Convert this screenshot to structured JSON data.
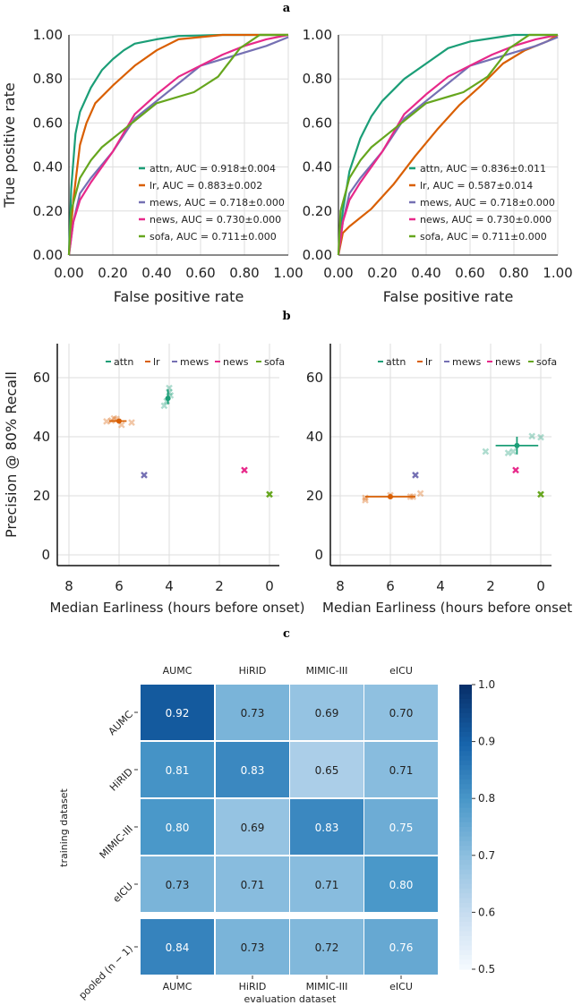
{
  "panel_labels": [
    "a",
    "b",
    "c"
  ],
  "colors": {
    "attn": "#1b9e77",
    "lr": "#d95f02",
    "mews": "#7570b3",
    "news": "#e7298a",
    "sofa": "#66a61e"
  },
  "chart_data": [
    {
      "type": "line",
      "panel": "a",
      "xlabel": "False positive rate",
      "ylabel": "True positive rate",
      "xlim": [
        0,
        1
      ],
      "ylim": [
        0,
        1
      ],
      "xticks": [
        "0.00",
        "0.20",
        "0.40",
        "0.60",
        "0.80",
        "1.00"
      ],
      "yticks": [
        "0.00",
        "0.20",
        "0.40",
        "0.60",
        "0.80",
        "1.00"
      ],
      "grid": true,
      "legend_position": "bottom-right",
      "series": [
        {
          "name": "attn, AUC = 0.918±0.004",
          "key": "attn",
          "points": [
            [
              0,
              0
            ],
            [
              0.01,
              0.3
            ],
            [
              0.03,
              0.55
            ],
            [
              0.05,
              0.65
            ],
            [
              0.1,
              0.76
            ],
            [
              0.15,
              0.84
            ],
            [
              0.2,
              0.89
            ],
            [
              0.25,
              0.93
            ],
            [
              0.3,
              0.96
            ],
            [
              0.4,
              0.98
            ],
            [
              0.5,
              0.995
            ],
            [
              0.7,
              1
            ],
            [
              1,
              1
            ]
          ]
        },
        {
          "name": "lr, AUC = 0.883±0.002",
          "key": "lr",
          "points": [
            [
              0,
              0
            ],
            [
              0.02,
              0.25
            ],
            [
              0.05,
              0.5
            ],
            [
              0.08,
              0.6
            ],
            [
              0.12,
              0.69
            ],
            [
              0.2,
              0.77
            ],
            [
              0.3,
              0.86
            ],
            [
              0.4,
              0.93
            ],
            [
              0.5,
              0.98
            ],
            [
              0.7,
              1
            ],
            [
              1,
              1
            ]
          ]
        },
        {
          "name": "mews, AUC = 0.718±0.000",
          "key": "mews",
          "points": [
            [
              0,
              0
            ],
            [
              0.02,
              0.15
            ],
            [
              0.05,
              0.28
            ],
            [
              0.1,
              0.35
            ],
            [
              0.2,
              0.47
            ],
            [
              0.3,
              0.62
            ],
            [
              0.4,
              0.7
            ],
            [
              0.5,
              0.78
            ],
            [
              0.6,
              0.86
            ],
            [
              0.7,
              0.89
            ],
            [
              0.8,
              0.92
            ],
            [
              0.9,
              0.95
            ],
            [
              1,
              0.99
            ]
          ]
        },
        {
          "name": "news, AUC = 0.730±0.000",
          "key": "news",
          "points": [
            [
              0,
              0
            ],
            [
              0.02,
              0.15
            ],
            [
              0.05,
              0.25
            ],
            [
              0.1,
              0.33
            ],
            [
              0.2,
              0.47
            ],
            [
              0.3,
              0.64
            ],
            [
              0.4,
              0.73
            ],
            [
              0.5,
              0.81
            ],
            [
              0.6,
              0.86
            ],
            [
              0.7,
              0.91
            ],
            [
              0.8,
              0.95
            ],
            [
              0.9,
              0.98
            ],
            [
              1,
              1
            ]
          ]
        },
        {
          "name": "sofa, AUC = 0.711±0.000",
          "key": "sofa",
          "points": [
            [
              0,
              0
            ],
            [
              0.01,
              0.2
            ],
            [
              0.05,
              0.35
            ],
            [
              0.1,
              0.43
            ],
            [
              0.15,
              0.49
            ],
            [
              0.25,
              0.57
            ],
            [
              0.4,
              0.69
            ],
            [
              0.57,
              0.74
            ],
            [
              0.68,
              0.81
            ],
            [
              0.78,
              0.94
            ],
            [
              0.87,
              1
            ],
            [
              1,
              1
            ]
          ]
        }
      ]
    },
    {
      "type": "line",
      "panel": "a",
      "xlabel": "False positive rate",
      "ylabel": "",
      "xlim": [
        0,
        1
      ],
      "ylim": [
        0,
        1
      ],
      "xticks": [
        "0.00",
        "0.20",
        "0.40",
        "0.60",
        "0.80",
        "1.00"
      ],
      "yticks": [
        "0.00",
        "0.20",
        "0.40",
        "0.60",
        "0.80",
        "1.00"
      ],
      "grid": true,
      "legend_position": "bottom-right",
      "series": [
        {
          "name": "attn, AUC = 0.836±0.011",
          "key": "attn",
          "points": [
            [
              0,
              0
            ],
            [
              0.02,
              0.2
            ],
            [
              0.05,
              0.38
            ],
            [
              0.1,
              0.53
            ],
            [
              0.15,
              0.63
            ],
            [
              0.2,
              0.7
            ],
            [
              0.3,
              0.8
            ],
            [
              0.4,
              0.87
            ],
            [
              0.5,
              0.94
            ],
            [
              0.6,
              0.97
            ],
            [
              0.8,
              1
            ],
            [
              1,
              1
            ]
          ]
        },
        {
          "name": "lr, AUC = 0.587±0.014",
          "key": "lr",
          "points": [
            [
              0,
              0
            ],
            [
              0.02,
              0.1
            ],
            [
              0.05,
              0.13
            ],
            [
              0.15,
              0.21
            ],
            [
              0.25,
              0.32
            ],
            [
              0.35,
              0.45
            ],
            [
              0.45,
              0.57
            ],
            [
              0.55,
              0.68
            ],
            [
              0.65,
              0.77
            ],
            [
              0.75,
              0.87
            ],
            [
              0.85,
              0.93
            ],
            [
              0.95,
              0.97
            ],
            [
              1,
              1
            ]
          ]
        },
        {
          "name": "mews, AUC = 0.718±0.000",
          "key": "mews",
          "points": [
            [
              0,
              0
            ],
            [
              0.02,
              0.15
            ],
            [
              0.05,
              0.28
            ],
            [
              0.1,
              0.35
            ],
            [
              0.2,
              0.47
            ],
            [
              0.3,
              0.62
            ],
            [
              0.4,
              0.7
            ],
            [
              0.5,
              0.78
            ],
            [
              0.6,
              0.86
            ],
            [
              0.7,
              0.89
            ],
            [
              0.8,
              0.92
            ],
            [
              0.9,
              0.95
            ],
            [
              1,
              0.99
            ]
          ]
        },
        {
          "name": "news, AUC = 0.730±0.000",
          "key": "news",
          "points": [
            [
              0,
              0
            ],
            [
              0.02,
              0.15
            ],
            [
              0.05,
              0.25
            ],
            [
              0.1,
              0.33
            ],
            [
              0.2,
              0.47
            ],
            [
              0.3,
              0.64
            ],
            [
              0.4,
              0.73
            ],
            [
              0.5,
              0.81
            ],
            [
              0.6,
              0.86
            ],
            [
              0.7,
              0.91
            ],
            [
              0.8,
              0.95
            ],
            [
              0.9,
              0.98
            ],
            [
              1,
              1
            ]
          ]
        },
        {
          "name": "sofa, AUC = 0.711±0.000",
          "key": "sofa",
          "points": [
            [
              0,
              0
            ],
            [
              0.01,
              0.2
            ],
            [
              0.05,
              0.35
            ],
            [
              0.1,
              0.43
            ],
            [
              0.15,
              0.49
            ],
            [
              0.25,
              0.57
            ],
            [
              0.4,
              0.69
            ],
            [
              0.57,
              0.74
            ],
            [
              0.68,
              0.81
            ],
            [
              0.78,
              0.94
            ],
            [
              0.87,
              1
            ],
            [
              1,
              1
            ]
          ]
        }
      ]
    },
    {
      "type": "scatter",
      "panel": "b",
      "xlabel": "Median Earliness (hours before onset)",
      "ylabel": "Precision @ 80% Recall",
      "xlim": [
        8.4,
        -0.4
      ],
      "ylim": [
        -3,
        71
      ],
      "xticks": [
        "8",
        "6",
        "4",
        "2",
        "0"
      ],
      "yticks": [
        "0",
        "20",
        "40",
        "60"
      ],
      "grid": true,
      "legend_position": "top",
      "legend": [
        "attn",
        "lr",
        "mews",
        "news",
        "sofa"
      ],
      "series": [
        {
          "key": "attn",
          "mean": [
            4.05,
            53
          ],
          "xerr": [
            4.05,
            4.05
          ],
          "yerr": [
            51,
            56
          ],
          "runs": [
            [
              4.0,
              56.5
            ],
            [
              4.0,
              55
            ],
            [
              4.2,
              50.5
            ],
            [
              4.1,
              52
            ],
            [
              3.95,
              54
            ]
          ]
        },
        {
          "key": "lr",
          "mean": [
            6.0,
            45.3
          ],
          "xerr": [
            6.4,
            5.7
          ],
          "yerr": [
            45.3,
            45.3
          ],
          "runs": [
            [
              6.5,
              45.2
            ],
            [
              6.2,
              46.2
            ],
            [
              6.1,
              46
            ],
            [
              5.9,
              44
            ],
            [
              5.5,
              44.8
            ],
            [
              6.3,
              45.5
            ]
          ]
        },
        {
          "key": "mews",
          "mean": [
            5,
            27
          ],
          "runs": [
            [
              5,
              27
            ]
          ]
        },
        {
          "key": "news",
          "mean": [
            1,
            28.7
          ],
          "runs": [
            [
              1,
              28.7
            ]
          ]
        },
        {
          "key": "sofa",
          "mean": [
            0,
            20.5
          ],
          "runs": [
            [
              0,
              20.5
            ]
          ]
        }
      ]
    },
    {
      "type": "scatter",
      "panel": "b",
      "xlabel": "Median Earliness (hours before onset)",
      "ylabel": "",
      "xlim": [
        8.4,
        -0.4
      ],
      "ylim": [
        -3,
        71
      ],
      "xticks": [
        "8",
        "6",
        "4",
        "2",
        "0"
      ],
      "yticks": [
        "0",
        "20",
        "40",
        "60"
      ],
      "grid": true,
      "legend_position": "top",
      "legend": [
        "attn",
        "lr",
        "mews",
        "news",
        "sofa"
      ],
      "series": [
        {
          "key": "attn",
          "mean": [
            0.95,
            37
          ],
          "xerr": [
            1.8,
            0.1
          ],
          "yerr": [
            34,
            40
          ],
          "runs": [
            [
              2.2,
              35
            ],
            [
              1.3,
              34.5
            ],
            [
              1.1,
              35
            ],
            [
              0.35,
              40.2
            ],
            [
              0,
              39.8
            ]
          ]
        },
        {
          "key": "lr",
          "mean": [
            6.0,
            19.7
          ],
          "xerr": [
            7.0,
            5.0
          ],
          "yerr": [
            19.7,
            19.7
          ],
          "runs": [
            [
              7,
              18.5
            ],
            [
              7,
              19.3
            ],
            [
              6,
              20.2
            ],
            [
              5.2,
              19.7
            ],
            [
              5.1,
              19.7
            ],
            [
              4.8,
              20.8
            ]
          ]
        },
        {
          "key": "mews",
          "mean": [
            5,
            27
          ],
          "runs": [
            [
              5,
              27
            ]
          ]
        },
        {
          "key": "news",
          "mean": [
            1,
            28.7
          ],
          "runs": [
            [
              1,
              28.7
            ]
          ]
        },
        {
          "key": "sofa",
          "mean": [
            0,
            20.5
          ],
          "runs": [
            [
              0,
              20.5
            ]
          ]
        }
      ]
    },
    {
      "type": "heatmap",
      "panel": "c",
      "xlabel": "evaluation dataset",
      "ylabel": "training dataset",
      "columns": [
        "AUMC",
        "HiRID",
        "MIMIC-III",
        "eICU"
      ],
      "rows": [
        "AUMC",
        "HiRID",
        "MIMIC-III",
        "eICU",
        "pooled (n − 1)"
      ],
      "values": [
        [
          "0.92",
          "0.73",
          "0.69",
          "0.70"
        ],
        [
          "0.81",
          "0.83",
          "0.65",
          "0.71"
        ],
        [
          "0.80",
          "0.69",
          "0.83",
          "0.75"
        ],
        [
          "0.73",
          "0.71",
          "0.71",
          "0.80"
        ],
        [
          "0.84",
          "0.73",
          "0.72",
          "0.76"
        ]
      ],
      "colorbar": {
        "range": [
          0.5,
          1.0
        ],
        "ticks": [
          "0.5",
          "0.6",
          "0.7",
          "0.8",
          "0.9",
          "1.0"
        ],
        "colormap": "Blues"
      }
    }
  ]
}
